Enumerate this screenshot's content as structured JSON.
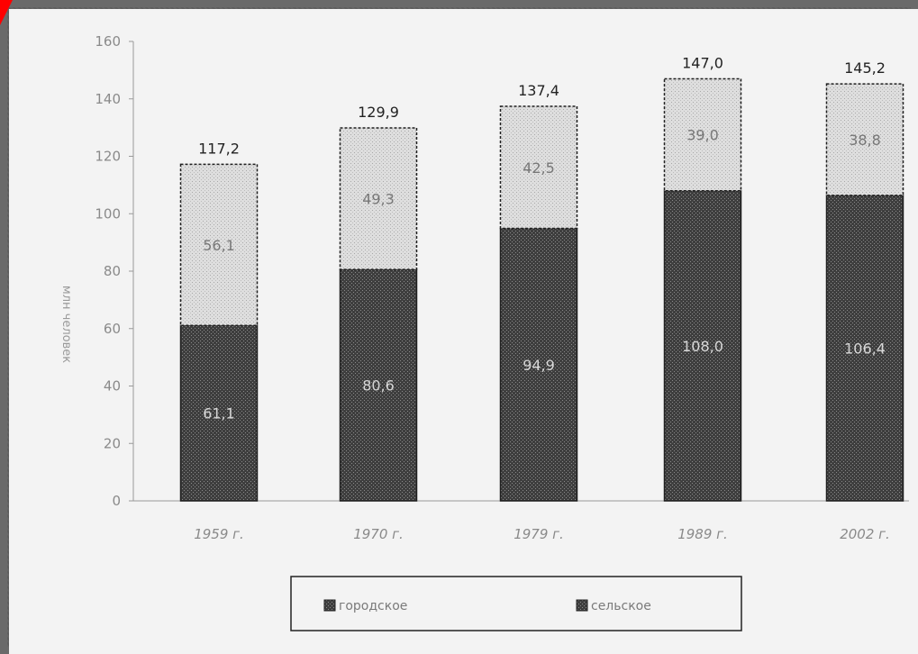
{
  "chart_data": {
    "type": "bar",
    "stacked": true,
    "categories": [
      "1959 г.",
      "1970 г.",
      "1979 г.",
      "1989 г.",
      "2002 г."
    ],
    "series": [
      {
        "name": "городское",
        "values": [
          61.1,
          80.6,
          94.9,
          108.0,
          106.4
        ],
        "color": "#4a4a4a"
      },
      {
        "name": "сельское",
        "values": [
          56.1,
          49.3,
          42.5,
          39.0,
          38.8
        ],
        "color": "#d0d0d0"
      }
    ],
    "totals": [
      "117,2",
      "129,9",
      "137,4",
      "147,0",
      "145,2"
    ],
    "segment_labels": {
      "городское": [
        "61,1",
        "80,6",
        "94,9",
        "108,0",
        "106,4"
      ],
      "сельское": [
        "56,1",
        "49,3",
        "42,5",
        "39,0",
        "38,8"
      ]
    },
    "ylabel": "млн человек",
    "ylim": [
      0,
      160
    ],
    "yticks": [
      "0",
      "20",
      "40",
      "60",
      "80",
      "100",
      "120",
      "140",
      "160"
    ],
    "grid": false,
    "legend": {
      "position": "bottom",
      "items": [
        "городское",
        "сельское"
      ]
    }
  }
}
